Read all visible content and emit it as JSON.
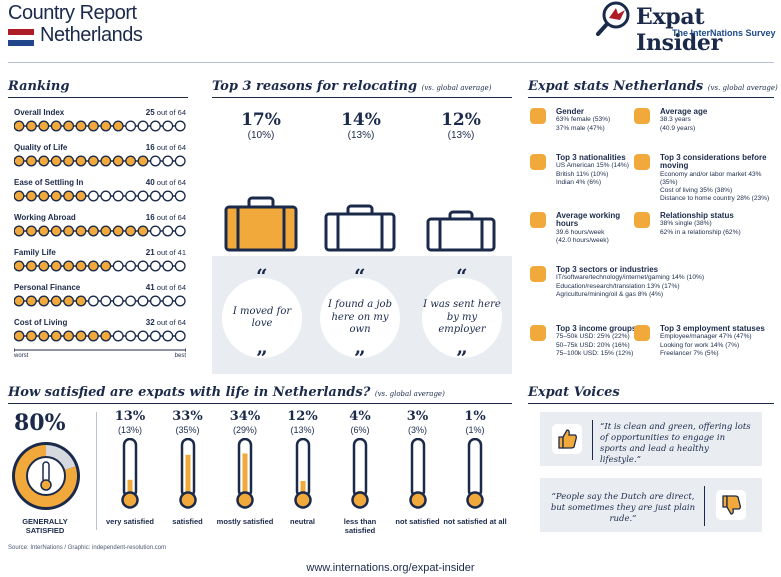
{
  "header": {
    "title": "Country Report",
    "country": "Netherlands",
    "brand_name": "Expat Insider",
    "brand_sub": "The InterNations Survey"
  },
  "colors": {
    "accent": "#f2a93b",
    "navy": "#1b2a4a",
    "band": "#e9edf2",
    "flag_red": "#ae1c28",
    "flag_blue": "#21468b"
  },
  "ranking": {
    "title": "Ranking",
    "out_of_word": "out of",
    "rows": [
      {
        "label": "Overall Index",
        "rank": "25",
        "total": "64",
        "filled": 9
      },
      {
        "label": "Quality of Life",
        "rank": "16",
        "total": "64",
        "filled": 11
      },
      {
        "label": "Ease of Settling In",
        "rank": "40",
        "total": "64",
        "filled": 6
      },
      {
        "label": "Working Abroad",
        "rank": "16",
        "total": "64",
        "filled": 11
      },
      {
        "label": "Family Life",
        "rank": "21",
        "total": "41",
        "filled": 8
      },
      {
        "label": "Personal Finance",
        "rank": "41",
        "total": "64",
        "filled": 6
      },
      {
        "label": "Cost of Living",
        "rank": "32",
        "total": "64",
        "filled": 8
      }
    ],
    "worst": "worst",
    "best": "best"
  },
  "reasons": {
    "title": "Top 3 reasons for relocating",
    "note": "(vs. global average)",
    "items": [
      {
        "pct": "17%",
        "avg": "(10%)",
        "quote": "I moved for love",
        "highlight": true
      },
      {
        "pct": "14%",
        "avg": "(13%)",
        "quote": "I found a job here on my own",
        "highlight": false
      },
      {
        "pct": "12%",
        "avg": "(13%)",
        "quote": "I was sent here by my employer",
        "highlight": false
      }
    ]
  },
  "stats": {
    "title": "Expat stats Netherlands",
    "note": "(vs. global average)",
    "items": [
      {
        "icon": "gender-icon",
        "head": "Gender",
        "lines": [
          "63% female (53%)",
          "37% male (47%)"
        ]
      },
      {
        "icon": "calendar-icon",
        "head": "Average age",
        "lines": [
          "38.3 years",
          "(40.9 years)"
        ]
      },
      {
        "icon": "flag-icon",
        "head": "Top 3 nationalities",
        "lines": [
          "US American 15% (14%)",
          "British 11% (10%)",
          "Indian 4% (6%)"
        ]
      },
      {
        "icon": "checklist-icon",
        "head": "Top 3 considerations before moving",
        "lines": [
          "Economy and/or labor market 43% (35%)",
          "Cost of living 35% (38%)",
          "Distance to home country 28% (23%)"
        ]
      },
      {
        "icon": "clock-icon",
        "head": "Average working hours",
        "lines": [
          "39.6 hours/week",
          "(42.0 hours/week)"
        ]
      },
      {
        "icon": "heart-icon",
        "head": "Relationship status",
        "lines": [
          "38% single (38%)",
          "62% in a relationship (62%)"
        ]
      },
      {
        "icon": "sectors-icon",
        "head": "Top 3 sectors or industries",
        "lines": [
          "IT/software/technology/internet/gaming 14% (10%)",
          "Education/research/translation 13% (17%)",
          "Agriculture/mining/oil & gas 8% (4%)"
        ]
      },
      {
        "icon": "money-icon",
        "head": "Top 3 income groups",
        "lines": [
          "75–50k USD: 25% (22%)",
          "50–75k USD: 20% (16%)",
          "75–100k USD: 15% (12%)"
        ]
      },
      {
        "icon": "briefcase-icon",
        "head": "Top 3 employment statuses",
        "lines": [
          "Employee/manager 47% (47%)",
          "Looking for work 14% (7%)",
          "Freelancer 7% (5%)"
        ]
      }
    ]
  },
  "satisfaction": {
    "title": "How satisfied are expats with life in Netherlands?",
    "note": "(vs. global average)",
    "total_pct": "80%",
    "total_value": 80,
    "total_label": "GENERALLY SATISFIED",
    "items": [
      {
        "pct": "13%",
        "avg": "(13%)",
        "value": 13,
        "label": "very satisfied"
      },
      {
        "pct": "33%",
        "avg": "(35%)",
        "value": 33,
        "label": "satisfied"
      },
      {
        "pct": "34%",
        "avg": "(29%)",
        "value": 34,
        "label": "mostly satisfied"
      },
      {
        "pct": "12%",
        "avg": "(13%)",
        "value": 12,
        "label": "neutral"
      },
      {
        "pct": "4%",
        "avg": "(6%)",
        "value": 4,
        "label": "less than satisfied"
      },
      {
        "pct": "3%",
        "avg": "(3%)",
        "value": 3,
        "label": "not satisfied"
      },
      {
        "pct": "1%",
        "avg": "(1%)",
        "value": 1,
        "label": "not satisfied at all"
      }
    ]
  },
  "voices": {
    "title": "Expat Voices",
    "positive": "“It is clean and green, offering lots of opportunities to engage in sports and lead a healthy lifestyle.”",
    "negative": "“People say the Dutch are direct, but sometimes they are just plain rude.”"
  },
  "source": "Source: InterNations / Graphic: independent-resolution.com",
  "footer_url": "www.internations.org/expat-insider"
}
